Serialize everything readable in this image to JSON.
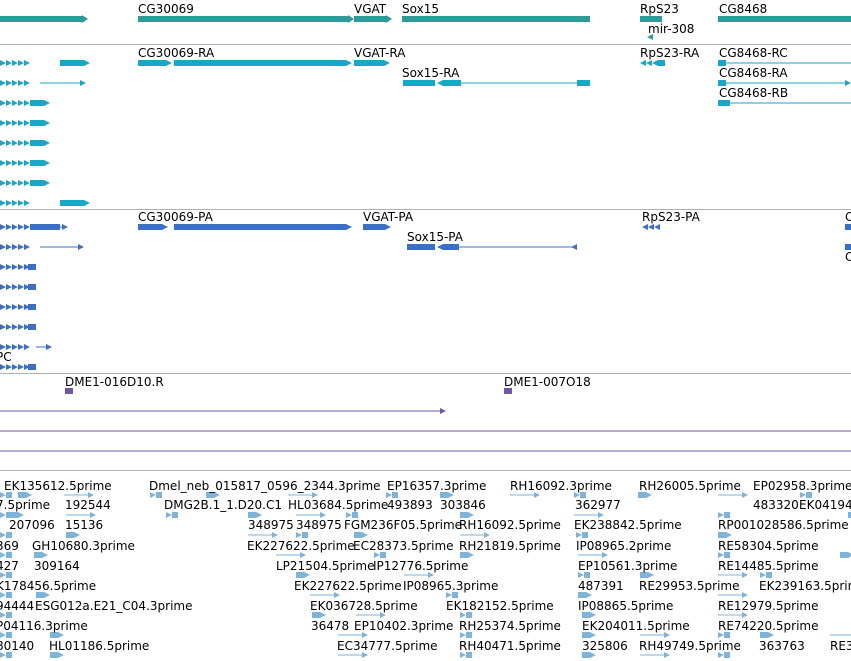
{
  "colors": {
    "gene": "#2e9b99",
    "mrna": "#1aa6c4",
    "protein": "#3b6fc6",
    "clone": "#7256a6",
    "est": "#7fb3d8",
    "divider": "#b0b0b0"
  },
  "tracks": {
    "gene": {
      "labels": [
        "CG30069",
        "VGAT",
        "Sox15",
        "RpS23",
        "CG8468",
        "mir-308"
      ]
    },
    "mrna": {
      "labels": [
        "CG30069-RA",
        "VGAT-RA",
        "Sox15-RA",
        "RpS23-RA",
        "CG8468-RC",
        "CG8468-RA",
        "CG8468-RB"
      ]
    },
    "protein": {
      "labels": [
        "CG30069-PA",
        "VGAT-PA",
        "Sox15-PA",
        "RpS23-PA",
        "C",
        "C",
        "PC"
      ]
    },
    "clone": {
      "labels": [
        "DME1-016D10.R",
        "DME1-007O18"
      ]
    },
    "est": {
      "labels": [
        "EK135612.5prime",
        "Dmel_neb_015817_0596_2344.3prime",
        "EP16357.3prime",
        "RH16092.3prime",
        "RH26005.5prime",
        "EP02958.3prime",
        "7.5prime",
        "192544",
        "DMG2B.1_1.D20.C1",
        "HL03684.5prime",
        "493893",
        "303846",
        "362977",
        "483320",
        "EK04194",
        "207096",
        "15136",
        "348975",
        "348975",
        "FGM236F05.5prime",
        "RH16092.5prime",
        "EK238842.5prime",
        "RP001028586.5prime",
        "369",
        "GH10680.3prime",
        "EK227622.5prime",
        "EC28373.5prime",
        "RH21819.5prime",
        "IP08965.2prime",
        "RE58304.5prime",
        "427",
        "309164",
        "LP21504.5prime",
        "IP12776.5prime",
        "EP10561.3prime",
        "RE14485.5prime",
        "K178456.5prime",
        "EK227622.5prime",
        "IP08965.3prime",
        "487391",
        "RE29953.5prime",
        "EK239163.5prime",
        "94444",
        "ESG012a.E21_C04.3prime",
        "EK036728.5prime",
        "EK182152.5prime",
        "IP08865.5prime",
        "RE12979.5prime",
        "P04116.3prime",
        "36478",
        "EP10402.3prime",
        "RH25374.5prime",
        "EK204011.5prime",
        "RE74220.5prime",
        "80140",
        "HL01186.5prime",
        "EC34777.5prime",
        "RH40471.5prime",
        "325806",
        "RH49749.5prime",
        "363763",
        "RE3"
      ]
    }
  }
}
